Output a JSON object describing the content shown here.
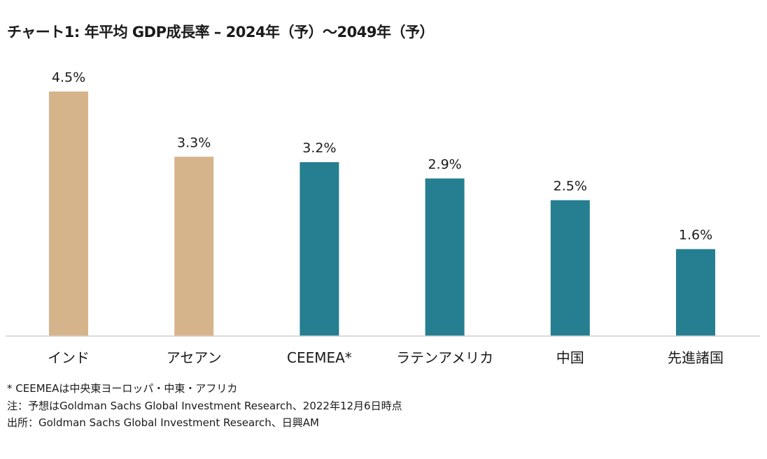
{
  "title": "チャート1: 年平均 GDP成長率 – 2024年（予）～2049年（予）",
  "chart_data": {
    "type": "bar",
    "categories": [
      "インド",
      "アセアン",
      "CEEMEA*",
      "ラテンアメリカ",
      "中国",
      "先進諸国"
    ],
    "values": [
      4.5,
      3.3,
      3.2,
      2.9,
      2.5,
      1.6
    ],
    "value_labels": [
      "4.5%",
      "3.3%",
      "3.2%",
      "2.9%",
      "2.5%",
      "1.6%"
    ],
    "bar_colors": [
      "#d6b48b",
      "#d6b48b",
      "#267e91",
      "#267e91",
      "#267e91",
      "#267e91"
    ],
    "ylim": [
      0,
      4.5
    ],
    "grid": false,
    "legend": "none"
  },
  "notes": [
    "* CEEMEAは中央東ヨーロッパ・中東・アフリカ",
    "注：予想はGoldman Sachs Global Investment Research、2022年12月6日時点",
    "出所：Goldman Sachs Global Investment Research、日興AM"
  ]
}
